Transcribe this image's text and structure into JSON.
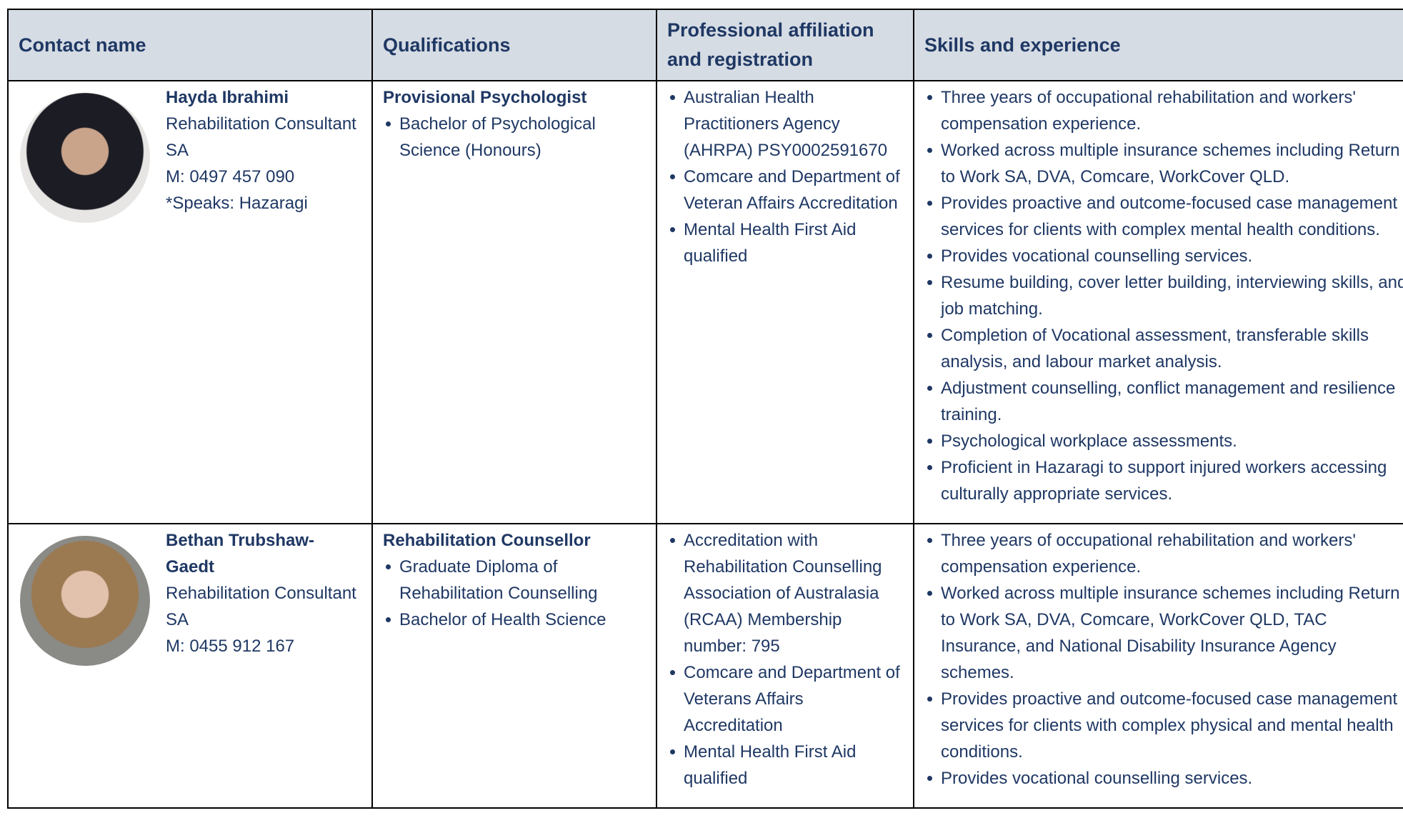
{
  "table": {
    "columns": [
      "Contact name",
      "Qualifications",
      "Professional affiliation and registration",
      "Skills and experience"
    ],
    "rows": [
      {
        "name": "Hayda Ibrahimi",
        "details": [
          "Rehabilitation Consultant SA",
          "M: 0497 457 090",
          "*Speaks: Hazaragi"
        ],
        "qualification_title": "Provisional Psychologist",
        "qualifications": [
          "Bachelor of Psychological Science (Honours)"
        ],
        "affiliations": [
          "Australian Health Practitioners Agency (AHRPA) PSY0002591670",
          "Comcare and Department of Veteran Affairs Accreditation",
          "Mental Health First Aid qualified"
        ],
        "skills": [
          "Three years of occupational rehabilitation and workers' compensation experience.",
          "Worked across multiple insurance schemes including Return to Work SA, DVA, Comcare, WorkCover QLD.",
          "Provides proactive and outcome-focused case management services for clients with complex mental health conditions.",
          "Provides vocational counselling services.",
          "Resume building, cover letter building, interviewing skills, and job matching.",
          "Completion of Vocational assessment, transferable skills analysis, and labour market analysis.",
          "Adjustment counselling, conflict management and resilience training.",
          "Psychological workplace assessments.",
          "Proficient in Hazaragi to support injured workers accessing culturally appropriate services."
        ]
      },
      {
        "name": "Bethan Trubshaw-Gaedt",
        "details": [
          "Rehabilitation Consultant SA",
          "M: 0455 912 167"
        ],
        "qualification_title": "Rehabilitation Counsellor",
        "qualifications": [
          "Graduate Diploma of Rehabilitation Counselling",
          "Bachelor of Health Science"
        ],
        "affiliations": [
          "Accreditation with Rehabilitation Counselling Association of Australasia (RCAA) Membership number: 795",
          "Comcare and Department of Veterans Affairs Accreditation",
          "Mental Health First Aid qualified"
        ],
        "skills": [
          "Three years of occupational rehabilitation and workers' compensation experience.",
          "Worked across multiple insurance schemes including Return to Work SA, DVA, Comcare, WorkCover QLD, TAC Insurance, and National Disability Insurance Agency schemes.",
          "Provides proactive and outcome-focused case management services for clients with complex physical and mental health conditions.",
          "Provides vocational counselling services."
        ]
      }
    ]
  }
}
